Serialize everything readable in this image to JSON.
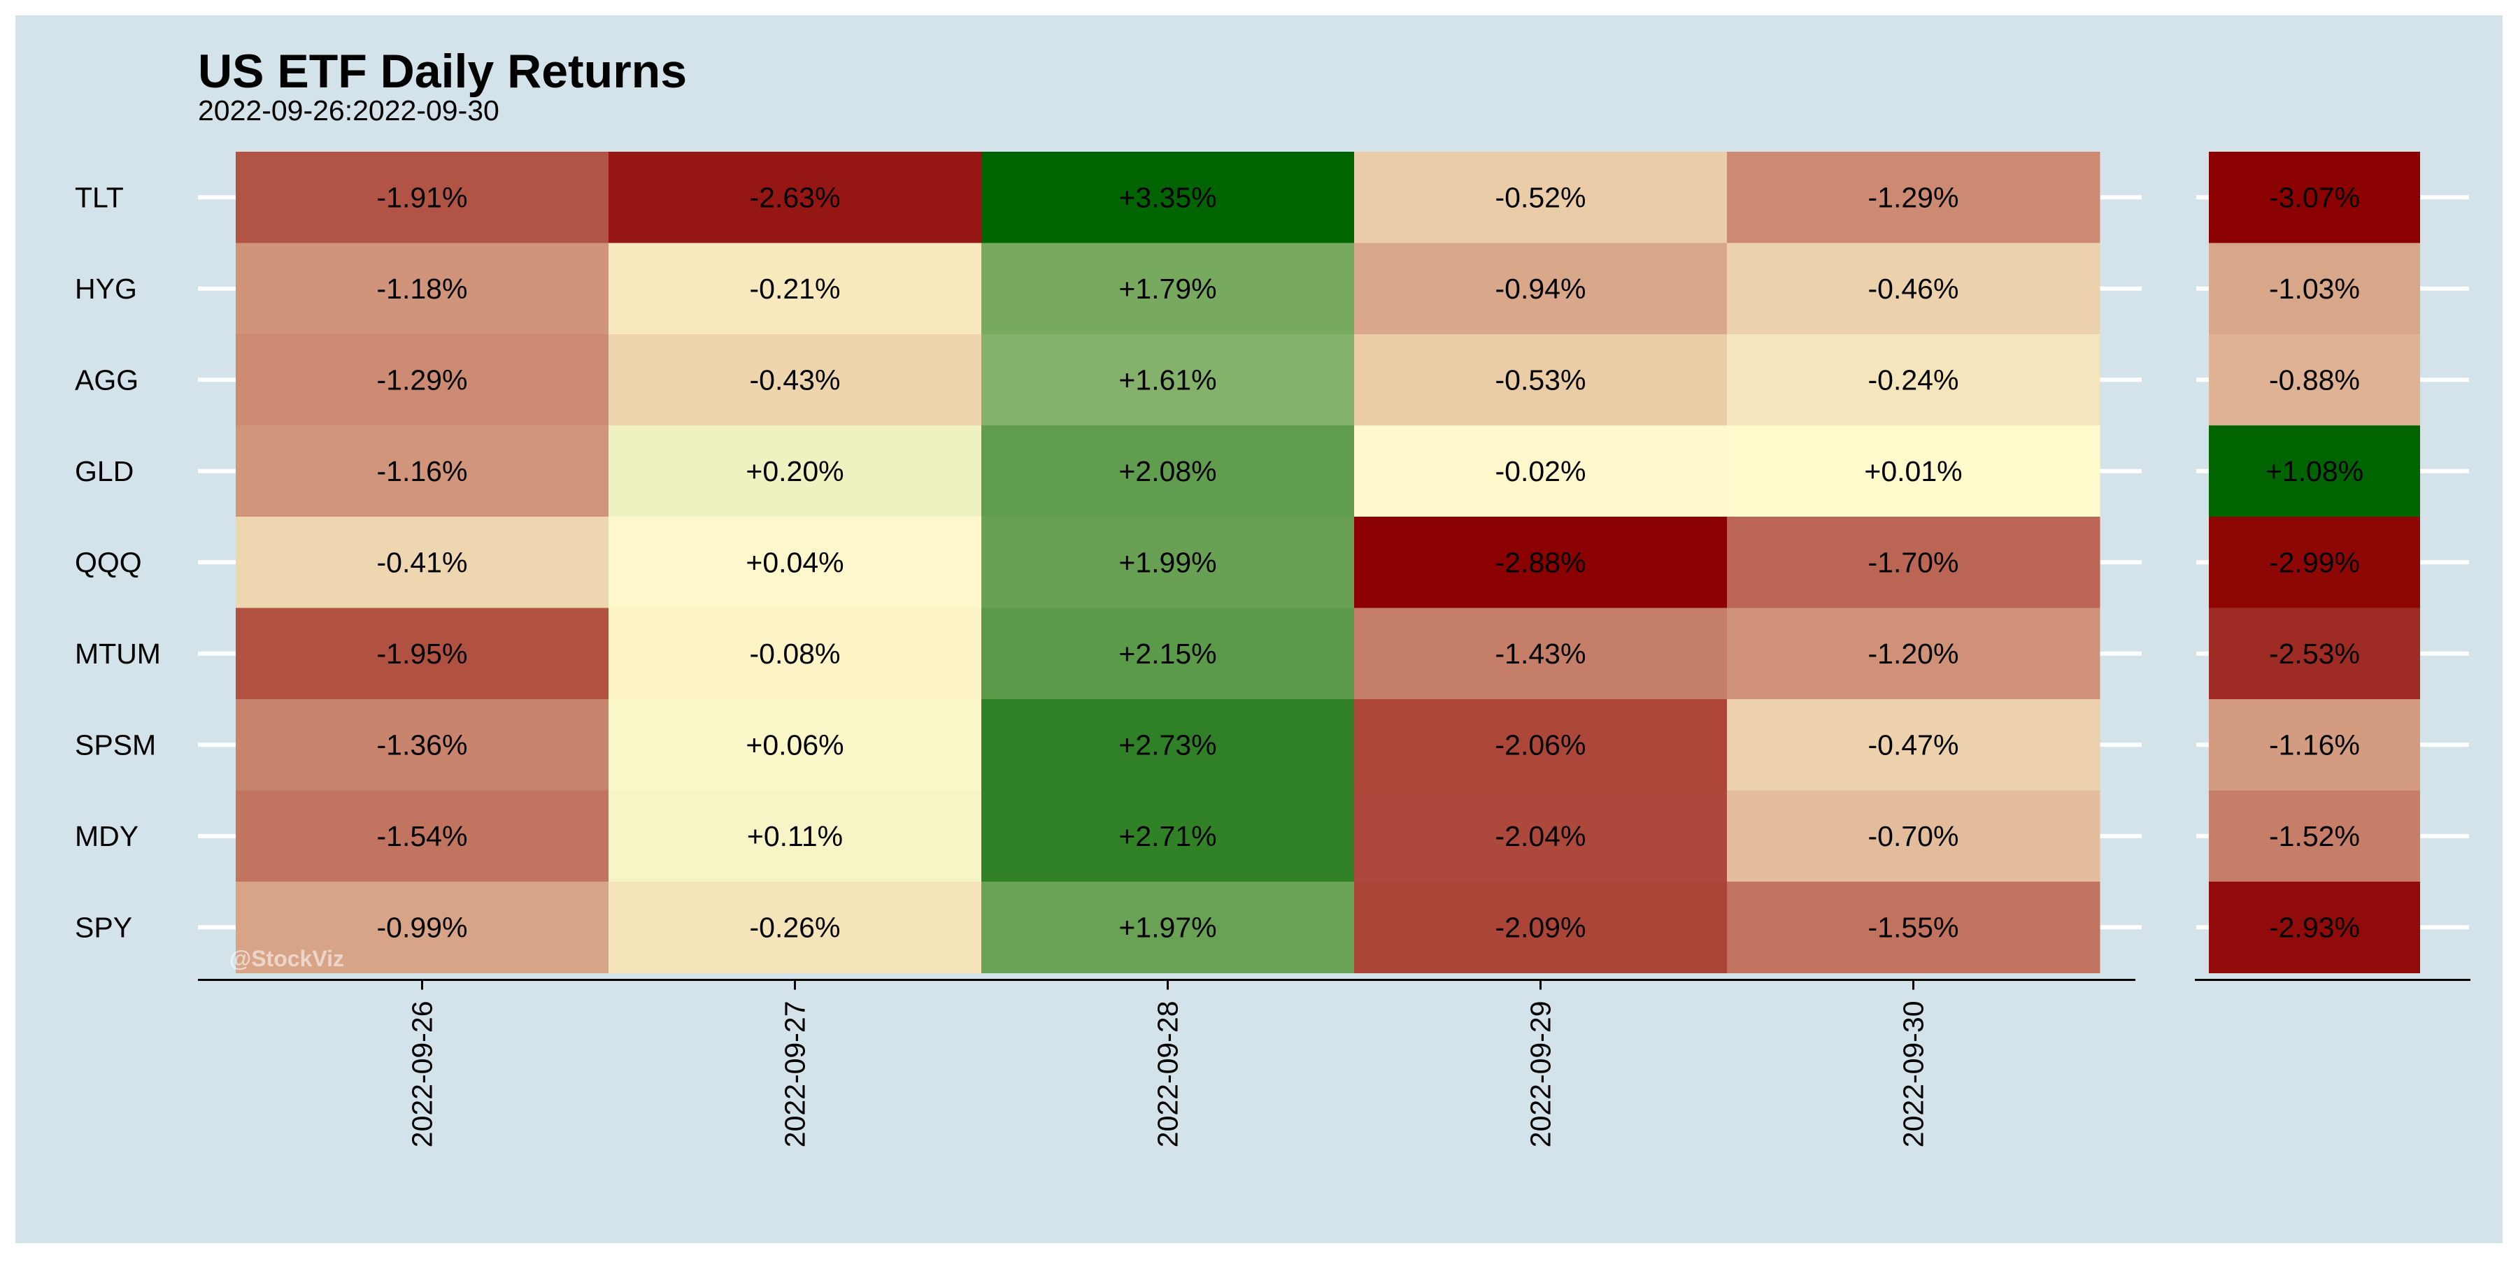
{
  "chart_data": {
    "type": "heatmap",
    "title": "US ETF Daily Returns",
    "subtitle": "2022-09-26:2022-09-30",
    "watermark": "@StockViz",
    "background_color": "#d4e3ea",
    "color_scale": {
      "negative_max": "#8b0000",
      "neutral": "#fffacd",
      "positive_max": "#006400"
    },
    "x_categories": [
      "2022-09-26",
      "2022-09-27",
      "2022-09-28",
      "2022-09-29",
      "2022-09-30"
    ],
    "y_categories": [
      "TLT",
      "HYG",
      "AGG",
      "GLD",
      "QQQ",
      "MTUM",
      "SPSM",
      "MDY",
      "SPY"
    ],
    "values": [
      [
        -1.91,
        -2.63,
        3.35,
        -0.52,
        -1.29
      ],
      [
        -1.18,
        -0.21,
        1.79,
        -0.94,
        -0.46
      ],
      [
        -1.29,
        -0.43,
        1.61,
        -0.53,
        -0.24
      ],
      [
        -1.16,
        0.2,
        2.08,
        -0.02,
        0.01
      ],
      [
        -0.41,
        0.04,
        1.99,
        -2.88,
        -1.7
      ],
      [
        -1.95,
        -0.08,
        2.15,
        -1.43,
        -1.2
      ],
      [
        -1.36,
        0.06,
        2.73,
        -2.06,
        -0.47
      ],
      [
        -1.54,
        0.11,
        2.71,
        -2.04,
        -0.7
      ],
      [
        -0.99,
        -0.26,
        1.97,
        -2.09,
        -1.55
      ]
    ],
    "cell_labels": [
      [
        "-1.91%",
        "-2.63%",
        "+3.35%",
        "-0.52%",
        "-1.29%"
      ],
      [
        "-1.18%",
        "-0.21%",
        "+1.79%",
        "-0.94%",
        "-0.46%"
      ],
      [
        "-1.29%",
        "-0.43%",
        "+1.61%",
        "-0.53%",
        "-0.24%"
      ],
      [
        "-1.16%",
        "+0.20%",
        "+2.08%",
        "-0.02%",
        "+0.01%"
      ],
      [
        "-0.41%",
        "+0.04%",
        "+1.99%",
        "-2.88%",
        "-1.70%"
      ],
      [
        "-1.95%",
        "-0.08%",
        "+2.15%",
        "-1.43%",
        "-1.20%"
      ],
      [
        "-1.36%",
        "+0.06%",
        "+2.73%",
        "-2.06%",
        "-0.47%"
      ],
      [
        "-1.54%",
        "+0.11%",
        "+2.71%",
        "-2.04%",
        "-0.70%"
      ],
      [
        "-0.99%",
        "-0.26%",
        "+1.97%",
        "-2.09%",
        "-1.55%"
      ]
    ],
    "summary_column": {
      "values": [
        -3.07,
        -1.03,
        -0.88,
        1.08,
        -2.99,
        -2.53,
        -1.16,
        -1.52,
        -2.93
      ],
      "labels": [
        "-3.07%",
        "-1.03%",
        "-0.88%",
        "+1.08%",
        "-2.99%",
        "-2.53%",
        "-1.16%",
        "-1.52%",
        "-2.93%"
      ]
    }
  }
}
